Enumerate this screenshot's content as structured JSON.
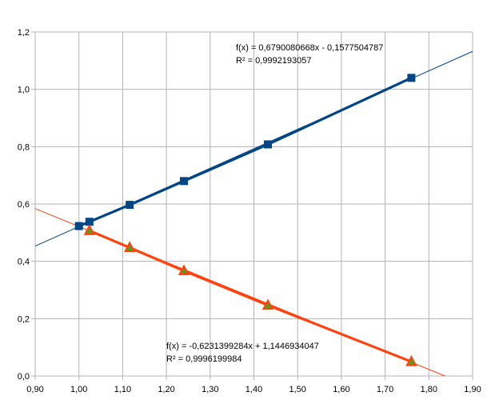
{
  "chart_data": {
    "type": "scatter",
    "xlim": [
      0.9,
      1.9
    ],
    "ylim": [
      0,
      1.2
    ],
    "grid": true,
    "x_ticks": [
      0.9,
      1.0,
      1.1,
      1.2,
      1.3,
      1.4,
      1.5,
      1.6,
      1.7,
      1.8,
      1.9
    ],
    "x_tick_labels": [
      "0,90",
      "1,00",
      "1,10",
      "1,20",
      "1,30",
      "1,40",
      "1,50",
      "1,60",
      "1,70",
      "1,80",
      "1,90"
    ],
    "y_ticks": [
      0,
      0.2,
      0.4,
      0.6,
      0.8,
      1.0,
      1.2
    ],
    "y_tick_labels": [
      "0,0",
      "0,2",
      "0,4",
      "0,6",
      "0,8",
      "1,0",
      "1,2"
    ],
    "series": [
      {
        "marker": "square",
        "color": "#004586",
        "x": [
          1.0,
          1.024,
          1.116,
          1.24,
          1.432,
          1.76
        ],
        "y": [
          0.523,
          0.538,
          0.597,
          0.68,
          0.808,
          1.04
        ],
        "trendline": {
          "slope": 0.6790080668,
          "intercept": -0.1577504787,
          "equation": "f(x) = 0,6790080668x - 0,1577504787",
          "r2": "R² = 0,9992193057",
          "color": "#004586"
        }
      },
      {
        "marker": "triangle",
        "color": "#ff420e",
        "marker_fill": "#579d1c",
        "x": [
          1.024,
          1.116,
          1.24,
          1.432,
          1.76
        ],
        "y": [
          0.507,
          0.448,
          0.367,
          0.247,
          0.05
        ],
        "trendline": {
          "slope": -0.6231399284,
          "intercept": 1.1446934047,
          "equation": "f(x) = -0,6231399284x + 1,1446934047",
          "r2": "R² = 0,9996199984",
          "color": "#ff420e"
        }
      }
    ]
  }
}
